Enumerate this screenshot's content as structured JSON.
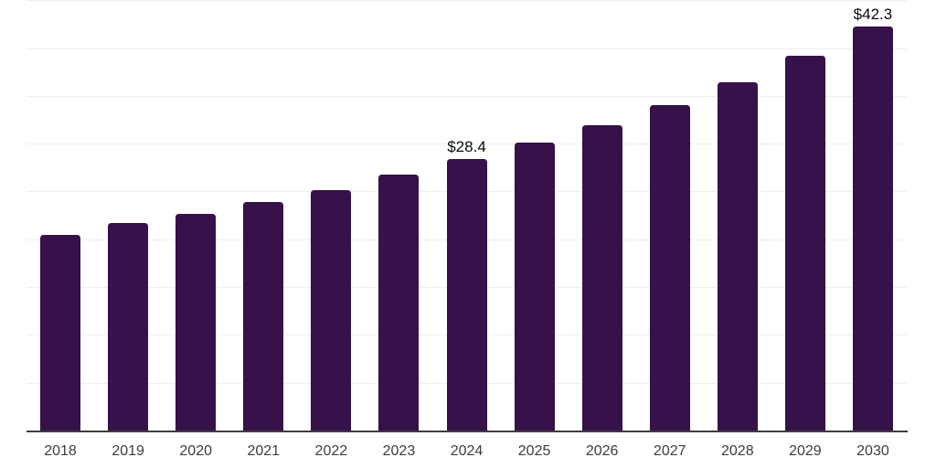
{
  "chart_data": {
    "type": "bar",
    "title": "",
    "xlabel": "",
    "ylabel": "",
    "categories": [
      "2018",
      "2019",
      "2020",
      "2021",
      "2022",
      "2023",
      "2024",
      "2025",
      "2026",
      "2027",
      "2028",
      "2029",
      "2030"
    ],
    "values": [
      20.5,
      21.7,
      22.7,
      23.9,
      25.2,
      26.8,
      28.4,
      30.2,
      32.0,
      34.1,
      36.5,
      39.2,
      42.3
    ],
    "annotations": [
      {
        "category": "2024",
        "text": "$28.4"
      },
      {
        "category": "2030",
        "text": "$42.3"
      }
    ],
    "ylim": [
      0,
      45
    ],
    "grid_step": 5,
    "grid": true,
    "legend": false,
    "colors": {
      "bar": "#36114a",
      "gridline": "#efefef",
      "axis_line": "#3e3e3e",
      "tick_label": "#3d3d3d",
      "annotation": "#0a0a0a",
      "background": "#ffffff"
    }
  }
}
